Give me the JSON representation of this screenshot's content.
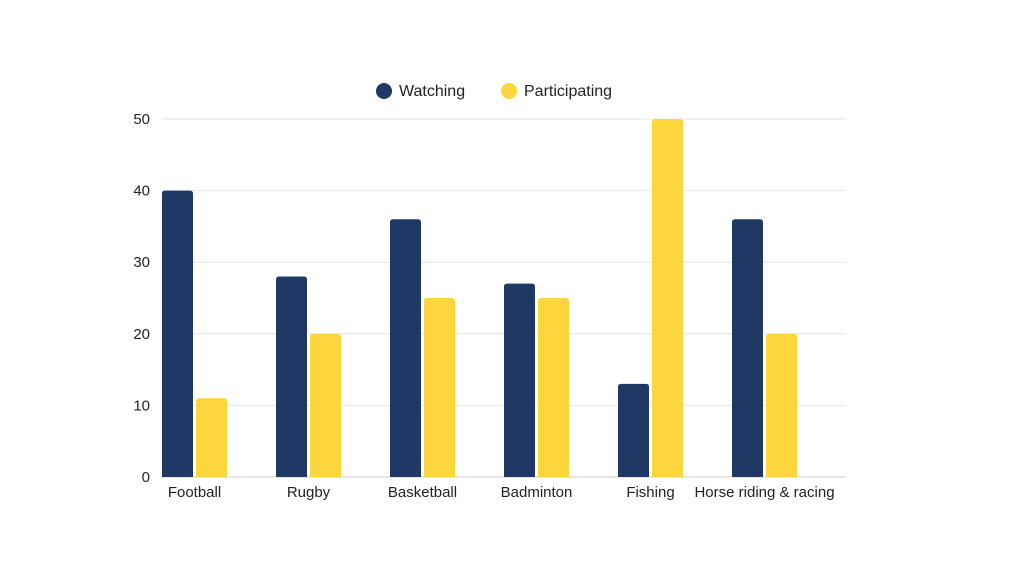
{
  "chart_data": {
    "type": "bar",
    "categories": [
      "Football",
      "Rugby",
      "Basketball",
      "Badminton",
      "Fishing",
      "Horse riding & racing"
    ],
    "series": [
      {
        "name": "Watching",
        "values": [
          40,
          28,
          36,
          27,
          13,
          36
        ],
        "color": "#1f3864"
      },
      {
        "name": "Participating",
        "values": [
          11,
          20,
          25,
          25,
          50,
          20
        ],
        "color": "#fdd53c"
      }
    ],
    "title": "",
    "xlabel": "",
    "ylabel": "",
    "ylim": [
      0,
      50
    ],
    "yticks": [
      0,
      10,
      20,
      30,
      40,
      50
    ],
    "grid": true,
    "legend_position": "top-center"
  }
}
